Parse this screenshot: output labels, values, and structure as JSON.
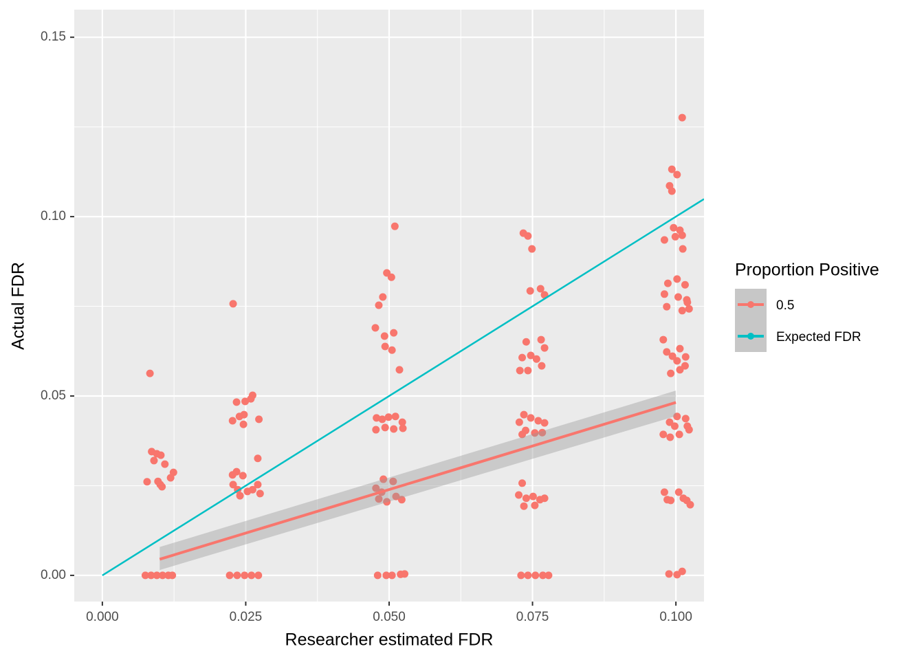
{
  "chart_data": {
    "type": "scatter",
    "xlabel": "Researcher estimated FDR",
    "ylabel": "Actual FDR",
    "legend_title": "Proportion Positive",
    "legend_position": "right",
    "grid": true,
    "panel_color": "#EBEBEB",
    "xlim": [
      -0.0049,
      0.1049
    ],
    "ylim": [
      -0.0073,
      0.1577
    ],
    "xticks": [
      {
        "value": 0,
        "label": "0.000"
      },
      {
        "value": 0.025,
        "label": "0.025"
      },
      {
        "value": 0.05,
        "label": "0.050"
      },
      {
        "value": 0.075,
        "label": "0.075"
      },
      {
        "value": 0.1,
        "label": "0.100"
      }
    ],
    "yticks": [
      {
        "value": 0,
        "label": "0.00"
      },
      {
        "value": 0.05,
        "label": "0.05"
      },
      {
        "value": 0.1,
        "label": "0.10"
      },
      {
        "value": 0.15,
        "label": "0.15"
      }
    ],
    "xminor": [
      0.0125,
      0.0375,
      0.0625,
      0.0875
    ],
    "yminor": [
      0.025,
      0.075,
      0.125
    ],
    "series": [
      {
        "name": "0.5",
        "color": "#F8766D",
        "x": [
          0.0083,
          0.0086,
          0.0095,
          0.0102,
          0.0109,
          0.009,
          0.0078,
          0.0097,
          0.0104,
          0.0119,
          0.0124,
          0.0101,
          0.0075,
          0.0085,
          0.0095,
          0.0105,
          0.0115,
          0.0122,
          0.0228,
          0.0234,
          0.0249,
          0.0259,
          0.0262,
          0.0227,
          0.0239,
          0.0247,
          0.0246,
          0.0273,
          0.0271,
          0.0227,
          0.0234,
          0.0245,
          0.0228,
          0.0236,
          0.024,
          0.0253,
          0.0262,
          0.0271,
          0.0275,
          0.0222,
          0.0235,
          0.0248,
          0.026,
          0.0272,
          0.051,
          0.0496,
          0.0504,
          0.0489,
          0.0482,
          0.0476,
          0.0492,
          0.0508,
          0.0493,
          0.0505,
          0.0518,
          0.0478,
          0.0488,
          0.0499,
          0.0511,
          0.0523,
          0.0477,
          0.0493,
          0.0508,
          0.0524,
          0.0477,
          0.049,
          0.0507,
          0.0482,
          0.0496,
          0.0512,
          0.0522,
          0.0487,
          0.048,
          0.0495,
          0.0505,
          0.052,
          0.0527,
          0.0734,
          0.0742,
          0.0749,
          0.0746,
          0.0764,
          0.0771,
          0.0739,
          0.0765,
          0.0771,
          0.0728,
          0.0742,
          0.0732,
          0.0747,
          0.0766,
          0.0757,
          0.0735,
          0.0747,
          0.0727,
          0.076,
          0.0771,
          0.0738,
          0.0754,
          0.0767,
          0.0732,
          0.0732,
          0.0726,
          0.0739,
          0.0751,
          0.0763,
          0.0771,
          0.0735,
          0.0754,
          0.073,
          0.0742,
          0.0755,
          0.0768,
          0.0778,
          0.1011,
          0.0993,
          0.1002,
          0.0989,
          0.0993,
          0.0996,
          0.1007,
          0.098,
          0.0999,
          0.1011,
          0.1012,
          0.0986,
          0.1002,
          0.1016,
          0.098,
          0.0984,
          0.1004,
          0.1019,
          0.102,
          0.1011,
          0.1023,
          0.0978,
          0.1007,
          0.0984,
          0.0994,
          0.1017,
          0.1002,
          0.0991,
          0.1007,
          0.1016,
          0.1002,
          0.1017,
          0.0989,
          0.102,
          0.0978,
          0.099,
          0.1006,
          0.1023,
          0.0998,
          0.098,
          0.1005,
          0.0991,
          0.1013,
          0.1019,
          0.1025,
          0.0985,
          0.0988,
          0.1002,
          0.1011
        ],
        "values": [
          0.0563,
          0.0345,
          0.0339,
          0.0335,
          0.031,
          0.032,
          0.0261,
          0.0262,
          0.0247,
          0.0272,
          0.0287,
          0.0253,
          0,
          0,
          0,
          0,
          0,
          0,
          0.0757,
          0.0483,
          0.0485,
          0.0492,
          0.0502,
          0.0431,
          0.0443,
          0.0448,
          0.0421,
          0.0435,
          0.0326,
          0.028,
          0.0289,
          0.0278,
          0.0253,
          0.0239,
          0.0222,
          0.0234,
          0.0239,
          0.0253,
          0.0228,
          0,
          0,
          0,
          0,
          0,
          0.0973,
          0.0843,
          0.0831,
          0.0776,
          0.0753,
          0.069,
          0.0667,
          0.0676,
          0.0638,
          0.0628,
          0.0573,
          0.0439,
          0.0435,
          0.0441,
          0.0443,
          0.0427,
          0.0406,
          0.0412,
          0.0408,
          0.041,
          0.0243,
          0.0268,
          0.0262,
          0.0213,
          0.0205,
          0.022,
          0.0211,
          0.0232,
          0,
          0,
          0,
          0.0003,
          0.0004,
          0.0954,
          0.0946,
          0.091,
          0.0793,
          0.0799,
          0.0782,
          0.0651,
          0.0657,
          0.0634,
          0.0571,
          0.0571,
          0.0607,
          0.0613,
          0.0584,
          0.0603,
          0.0448,
          0.0439,
          0.0427,
          0.0431,
          0.0425,
          0.0404,
          0.0397,
          0.0398,
          0.0393,
          0.0257,
          0.0224,
          0.0215,
          0.022,
          0.0211,
          0.0215,
          0.0193,
          0.0195,
          0,
          0,
          0,
          0,
          0,
          0.1276,
          0.1132,
          0.1117,
          0.1086,
          0.1071,
          0.0969,
          0.0962,
          0.0935,
          0.0944,
          0.0948,
          0.091,
          0.0814,
          0.0826,
          0.081,
          0.0784,
          0.0749,
          0.0776,
          0.0768,
          0.0761,
          0.0738,
          0.0743,
          0.0657,
          0.0632,
          0.0623,
          0.0611,
          0.0609,
          0.0598,
          0.0563,
          0.0573,
          0.0584,
          0.0443,
          0.0437,
          0.0427,
          0.0416,
          0.0393,
          0.0385,
          0.0393,
          0.0406,
          0.0416,
          0.0232,
          0.0232,
          0.0209,
          0.0215,
          0.0209,
          0.0197,
          0.0211,
          0.0004,
          0.0002,
          0.0011
        ],
        "fit": {
          "x": [
            0.01,
            0.1
          ],
          "values": [
            0.0045,
            0.0482
          ],
          "lower": [
            0.0015,
            0.0444
          ],
          "upper": [
            0.0079,
            0.0515
          ],
          "band_color": "#999999"
        }
      },
      {
        "name": "Expected FDR",
        "color": "#00BFC4",
        "type": "line",
        "x": [
          0,
          0.1049
        ],
        "values": [
          0,
          0.1049
        ]
      }
    ]
  }
}
